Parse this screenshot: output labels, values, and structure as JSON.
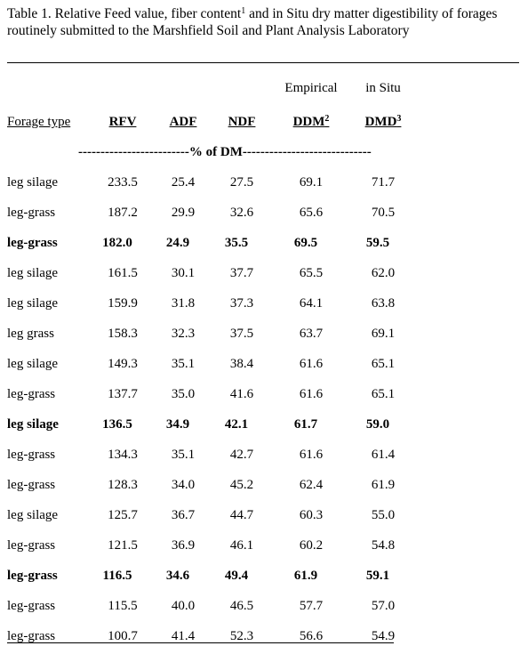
{
  "caption": {
    "main": "Table 1. Relative Feed value, fiber content",
    "sup": "1",
    "rest": " and in Situ dry matter digestibility of forages routinely submitted to the Marshfield Soil and Plant Analysis Laboratory"
  },
  "table": {
    "group_labels": [
      null,
      null,
      null,
      null,
      "Empirical",
      "in Situ"
    ],
    "columns": [
      {
        "label": "Forage type"
      },
      {
        "label": "RFV"
      },
      {
        "label": "ADF"
      },
      {
        "label": "NDF"
      },
      {
        "label": "DDM",
        "sup": "2"
      },
      {
        "label": "DMD",
        "sup": "3"
      }
    ],
    "units": "-------------------------% of DM-----------------------------",
    "rows": [
      {
        "bold": false,
        "cells": [
          "leg silage",
          "233.5",
          "25.4",
          "27.5",
          "69.1",
          "71.7"
        ]
      },
      {
        "bold": false,
        "cells": [
          "leg-grass",
          "187.2",
          "29.9",
          "32.6",
          "65.6",
          "70.5"
        ]
      },
      {
        "bold": true,
        "cells": [
          "leg-grass",
          "182.0",
          "24.9",
          "35.5",
          "69.5",
          "59.5"
        ]
      },
      {
        "bold": false,
        "cells": [
          "leg silage",
          "161.5",
          "30.1",
          "37.7",
          "65.5",
          "62.0"
        ]
      },
      {
        "bold": false,
        "cells": [
          "leg silage",
          "159.9",
          "31.8",
          "37.3",
          "64.1",
          "63.8"
        ]
      },
      {
        "bold": false,
        "cells": [
          "leg grass",
          "158.3",
          "32.3",
          "37.5",
          "63.7",
          "69.1"
        ]
      },
      {
        "bold": false,
        "cells": [
          "leg silage",
          "149.3",
          "35.1",
          "38.4",
          "61.6",
          "65.1"
        ]
      },
      {
        "bold": false,
        "cells": [
          "leg-grass",
          "137.7",
          "35.0",
          "41.6",
          "61.6",
          "65.1"
        ]
      },
      {
        "bold": true,
        "cells": [
          "leg silage",
          "136.5",
          "34.9",
          "42.1",
          "61.7",
          "59.0"
        ]
      },
      {
        "bold": false,
        "cells": [
          "leg-grass",
          "134.3",
          "35.1",
          "42.7",
          "61.6",
          "61.4"
        ]
      },
      {
        "bold": false,
        "cells": [
          "leg-grass",
          "128.3",
          "34.0",
          "45.2",
          "62.4",
          "61.9"
        ]
      },
      {
        "bold": false,
        "cells": [
          "leg silage",
          "125.7",
          "36.7",
          "44.7",
          "60.3",
          "55.0"
        ]
      },
      {
        "bold": false,
        "cells": [
          "leg-grass",
          "121.5",
          "36.9",
          "46.1",
          "60.2",
          "54.8"
        ]
      },
      {
        "bold": true,
        "cells": [
          "leg-grass",
          "116.5",
          "34.6",
          "49.4",
          "61.9",
          "59.1"
        ]
      },
      {
        "bold": false,
        "cells": [
          "leg-grass",
          "115.5",
          "40.0",
          "46.5",
          "57.7",
          "57.0"
        ]
      },
      {
        "bold": false,
        "cells": [
          "leg-grass",
          "100.7",
          "41.4",
          "52.3",
          "56.6",
          "54.9"
        ]
      }
    ]
  }
}
